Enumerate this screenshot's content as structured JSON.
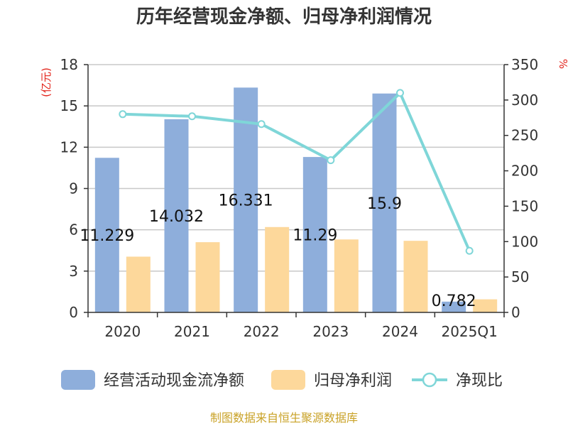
{
  "chart_data": {
    "type": "bar",
    "title": "历年经营现金净额、归母净利润情况",
    "categories": [
      "2020",
      "2021",
      "2022",
      "2023",
      "2024",
      "2025Q1"
    ],
    "series": [
      {
        "name": "经营活动现金流净额",
        "type": "bar",
        "axis": "left",
        "color": "#8eaedb",
        "values": [
          11.229,
          14.032,
          16.331,
          11.29,
          15.9,
          0.782
        ],
        "labels": [
          "11.229",
          "14.032",
          "16.331",
          "11.29",
          "15.9",
          "0.782"
        ]
      },
      {
        "name": "归母净利润",
        "type": "bar",
        "axis": "left",
        "color": "#fdd89b",
        "values": [
          4.05,
          5.1,
          6.2,
          5.3,
          5.2,
          0.95
        ]
      },
      {
        "name": "净现比",
        "type": "line",
        "axis": "right",
        "color": "#7fd6d8",
        "values": [
          280,
          277,
          266,
          215,
          310,
          87
        ]
      }
    ],
    "left_axis": {
      "unit": "(亿元)",
      "min": 0,
      "max": 18,
      "ticks": [
        "0",
        "3",
        "6",
        "9",
        "12",
        "15",
        "18"
      ]
    },
    "right_axis": {
      "unit": "%",
      "min": 0,
      "max": 350,
      "ticks": [
        "0",
        "50",
        "100",
        "150",
        "200",
        "250",
        "300",
        "350"
      ]
    },
    "grid": true,
    "legend_position": "bottom"
  },
  "footer": {
    "source": "制图数据来自恒生聚源数据库"
  }
}
